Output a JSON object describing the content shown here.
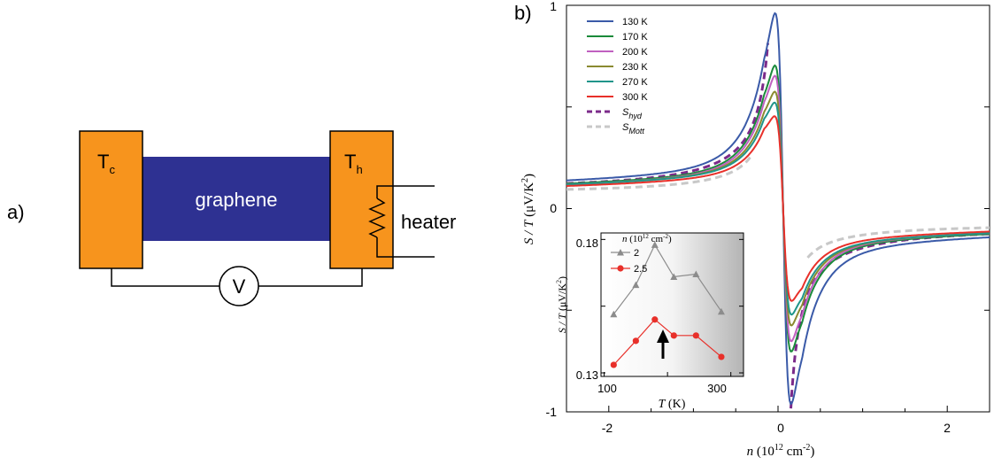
{
  "panel_a": {
    "label": "a)",
    "cold_symbol": "T",
    "cold_subscript": "c",
    "hot_symbol": "T",
    "hot_subscript": "h",
    "channel_label": "graphene",
    "heater_label": "heater",
    "voltmeter_symbol": "V",
    "colors": {
      "contact": "#f7941d",
      "graphene": "#2e3192",
      "wire": "#000000"
    }
  },
  "panel_b": {
    "label": "b)",
    "icons": [
      "thermo-circuit-diagram",
      "resistor-zigzag-icon",
      "voltmeter-circle-icon",
      "up-arrow-icon"
    ]
  },
  "chart_data": [
    {
      "type": "line",
      "xlabel_var": "n",
      "xlabel_unit": "(10",
      "xlabel_exp": "12",
      "xlabel_unit2": " cm",
      "xlabel_exp2": "-2",
      "xlabel_close": ")",
      "ylabel_var": "S / T",
      "ylabel_unit": "(μV/K",
      "ylabel_exp": "2",
      "ylabel_close": ")",
      "xlim": [
        -2.5,
        2.5
      ],
      "ylim": [
        -1,
        1
      ],
      "x_ticks": [
        "-2",
        "0",
        "2"
      ],
      "y_ticks": [
        "-1",
        "0",
        "1"
      ],
      "legend_position": "top-left",
      "series": [
        {
          "name": "130 K",
          "color": "#3a5aa8",
          "peak": 0.84,
          "dip": -0.97,
          "tail": 0.185
        },
        {
          "name": "170 K",
          "color": "#1a8a3a",
          "peak": 0.62,
          "dip": -0.68,
          "tail": 0.165
        },
        {
          "name": "200 K",
          "color": "#c060c0",
          "peak": 0.6,
          "dip": -0.6,
          "tail": 0.16
        },
        {
          "name": "230 K",
          "color": "#8a8a30",
          "peak": 0.5,
          "dip": -0.54,
          "tail": 0.16
        },
        {
          "name": "270 K",
          "color": "#20958a",
          "peak": 0.45,
          "dip": -0.48,
          "tail": 0.16
        },
        {
          "name": "300 K",
          "color": "#e8302a",
          "peak": 0.39,
          "dip": -0.41,
          "tail": 0.15
        }
      ],
      "reference_curves": [
        {
          "name": "S",
          "subscript": "hyd",
          "color": "#7b2a8a",
          "style": "dashed"
        },
        {
          "name": "S",
          "subscript": "Mott",
          "color": "#c8c8c8",
          "style": "dashed"
        }
      ]
    },
    {
      "type": "line",
      "legend_title_var": "n",
      "legend_title_unit": " (10",
      "legend_title_exp": "12",
      "legend_title_unit2": " cm",
      "legend_title_exp2": "-2",
      "legend_title_close": ")",
      "xlabel_var": "T",
      "xlabel_unit": " (K)",
      "ylabel_var": "S / T",
      "ylabel_unit": " (μV/K",
      "ylabel_exp": "2",
      "ylabel_close": ")",
      "x": [
        115,
        150,
        180,
        210,
        245,
        285
      ],
      "xlim": [
        95,
        320
      ],
      "ylim": [
        0.13,
        0.18
      ],
      "x_ticks": [
        "100",
        "300"
      ],
      "y_ticks": [
        "0.13",
        "0.18"
      ],
      "series": [
        {
          "name": "2",
          "color": "#8c8c8c",
          "marker": "triangle",
          "values": [
            0.152,
            0.163,
            0.178,
            0.166,
            0.167,
            0.153
          ]
        },
        {
          "name": "2.5",
          "color": "#e8302a",
          "marker": "circle",
          "values": [
            0.133,
            0.142,
            0.15,
            0.144,
            0.144,
            0.136
          ]
        }
      ]
    }
  ]
}
